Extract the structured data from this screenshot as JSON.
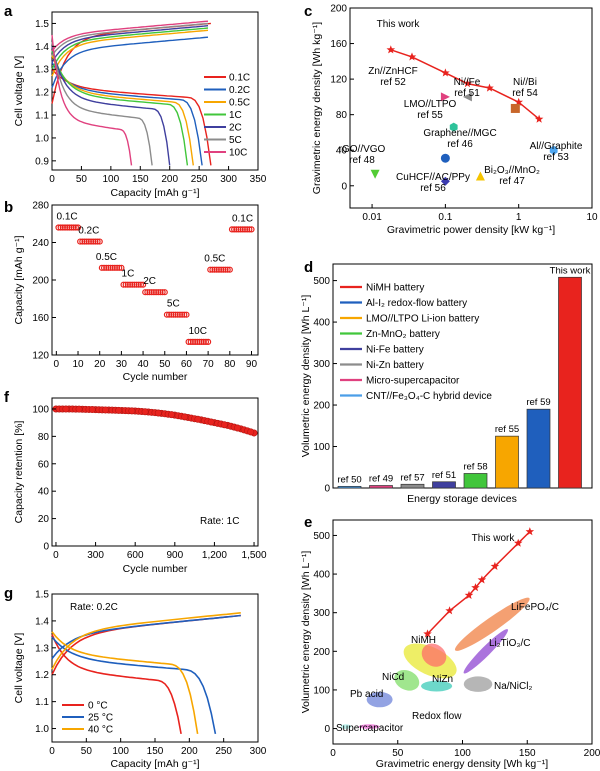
{
  "colors": {
    "red": "#e8231e",
    "blue": "#1f5fbd",
    "orange": "#f7a600",
    "green": "#41c63b",
    "navy": "#3f3f9e",
    "gray": "#8c8c8c",
    "magenta": "#e0417f",
    "lightblue": "#4b9ee8",
    "darkred": "#c0392b",
    "brown": "#c8662a",
    "teal": "#2ec29a",
    "cyan": "#4ea6f0",
    "yellow": "#f5c400",
    "purple": "#3b3bb0",
    "lime": "#52cc35"
  },
  "panels": {
    "a": {
      "letter": "a",
      "xlabel": "Capacity [mAh g⁻¹]",
      "ylabel": "Cell voltage [V]",
      "xticks": [
        "0",
        "50",
        "100",
        "150",
        "200",
        "250",
        "300",
        "350"
      ],
      "yticks": [
        "0.9",
        "1.0",
        "1.1",
        "1.2",
        "1.3",
        "1.4",
        "1.5"
      ],
      "legend": [
        "0.1C",
        "0.2C",
        "0.5C",
        "1C",
        "2C",
        "5C",
        "10C"
      ]
    },
    "b": {
      "letter": "b",
      "xlabel": "Cycle number",
      "ylabel": "Capacity [mAh g⁻¹]",
      "xticks": [
        "0",
        "10",
        "20",
        "30",
        "40",
        "50",
        "60",
        "70",
        "80",
        "90"
      ],
      "yticks": [
        "120",
        "160",
        "200",
        "240",
        "280"
      ],
      "rate_labels": [
        "0.1C",
        "0.2C",
        "0.5C",
        "1C",
        "2C",
        "5C",
        "10C",
        "0.5C",
        "0.1C"
      ]
    },
    "c": {
      "letter": "c",
      "xlabel": "Gravimetric power density [kW kg⁻¹]",
      "ylabel": "Gravimetric energy density [Wh kg⁻¹]",
      "xticks": [
        "0.01",
        "0.1",
        "1",
        "10"
      ],
      "yticks": [
        "0",
        "40",
        "80",
        "120",
        "160",
        "200"
      ],
      "labels": {
        "this_work": "This work",
        "zn": [
          "Zn//ZnHCF",
          "ref 52"
        ],
        "nife": [
          "Ni//Fe",
          "ref 51"
        ],
        "nibi": [
          "Ni//Bi",
          "ref 54"
        ],
        "lmo": [
          "LMO//LTPO",
          "ref 55"
        ],
        "graphene": [
          "Graphene//MGC",
          "ref 46"
        ],
        "rgo": [
          "rGO//VGO",
          "ref 48"
        ],
        "algraphite": [
          "Al//Graphite",
          "ref 53"
        ],
        "bi2o3": [
          "Bi₂O₃//MnO₂",
          "ref 47"
        ],
        "cuhcf": [
          "CuHCF//AC/PPy",
          "ref 56"
        ]
      }
    },
    "d": {
      "letter": "d",
      "xlabel": "Energy storage devices",
      "ylabel": "Volumetric energy density [Wh L⁻¹]",
      "yticks": [
        "0",
        "100",
        "200",
        "300",
        "400",
        "500"
      ],
      "legend": [
        "NiMH battery",
        "Al-I₂ redox-flow battery",
        "LMO//LTPO Li-ion battery",
        "Zn-MnO₂ battery",
        "Ni-Fe battery",
        "Ni-Zn battery",
        "Micro-supercapacitor",
        "CNT//Fe₃O₄-C hybrid device"
      ],
      "bar_labels": [
        "ref 50",
        "ref 49",
        "ref 57",
        "ref 51",
        "ref 58",
        "ref 55",
        "ref 59",
        "This work"
      ]
    },
    "e": {
      "letter": "e",
      "xlabel": "Gravimetric energy density [Wh kg⁻¹]",
      "ylabel": "Volumetric energy density [Wh L⁻¹]",
      "xticks": [
        "0",
        "50",
        "100",
        "150",
        "200"
      ],
      "yticks": [
        "0",
        "100",
        "200",
        "300",
        "400",
        "500"
      ],
      "labels": {
        "this_work": "This work",
        "lifepo4": "LiFePO₄/C",
        "nimh": "NiMH",
        "li2tio3": "Li₂TiO₃/C",
        "nicd": "NiCd",
        "nizn": "NiZn",
        "nanicl2": "Na/NiCl₂",
        "pbacid": "Pb acid",
        "redox": "Redox flow",
        "supercap": "Supercapacitor"
      }
    },
    "f": {
      "letter": "f",
      "xlabel": "Cycle number",
      "ylabel": "Capacity retention [%]",
      "xticks": [
        "0",
        "300",
        "600",
        "900",
        "1,200",
        "1,500"
      ],
      "yticks": [
        "0",
        "20",
        "40",
        "60",
        "80",
        "100"
      ],
      "rate": "Rate: 1C"
    },
    "g": {
      "letter": "g",
      "xlabel": "Capacity [mAh g⁻¹]",
      "ylabel": "Cell voltage [V]",
      "xticks": [
        "0",
        "50",
        "100",
        "150",
        "200",
        "250",
        "300"
      ],
      "yticks": [
        "1.0",
        "1.1",
        "1.2",
        "1.3",
        "1.4",
        "1.5"
      ],
      "rate": "Rate: 0.2C",
      "legend": [
        "0 °C",
        "25 °C",
        "40 °C"
      ]
    }
  },
  "chart_data": [
    {
      "panel": "a",
      "type": "line",
      "xlim": [
        0,
        350
      ],
      "ylim": [
        0.86,
        1.55
      ],
      "series": [
        {
          "name": "0.1C",
          "color": "#e8231e",
          "discharge_end": 270,
          "charge_end": 270,
          "d_start": 1.3,
          "d_plateau": 1.22,
          "c_start": 1.15,
          "c_plateau": 1.5
        },
        {
          "name": "0.2C",
          "color": "#1f5fbd",
          "discharge_end": 255,
          "charge_end": 265,
          "d_start": 1.33,
          "d_plateau": 1.21,
          "c_start": 1.22,
          "c_plateau": 1.44
        },
        {
          "name": "0.5C",
          "color": "#f7a600",
          "discharge_end": 240,
          "charge_end": 265,
          "d_start": 1.36,
          "d_plateau": 1.2,
          "c_start": 1.27,
          "c_plateau": 1.47
        },
        {
          "name": "1C",
          "color": "#41c63b",
          "discharge_end": 230,
          "charge_end": 265,
          "d_start": 1.38,
          "d_plateau": 1.19,
          "c_start": 1.3,
          "c_plateau": 1.48
        },
        {
          "name": "2C",
          "color": "#3f3f9e",
          "discharge_end": 200,
          "charge_end": 265,
          "d_start": 1.4,
          "d_plateau": 1.17,
          "c_start": 1.33,
          "c_plateau": 1.49
        },
        {
          "name": "5C",
          "color": "#8c8c8c",
          "discharge_end": 170,
          "charge_end": 265,
          "d_start": 1.42,
          "d_plateau": 1.13,
          "c_start": 1.36,
          "c_plateau": 1.5
        },
        {
          "name": "10C",
          "color": "#e0417f",
          "discharge_end": 135,
          "charge_end": 265,
          "d_start": 1.45,
          "d_plateau": 1.08,
          "c_start": 1.38,
          "c_plateau": 1.51
        }
      ]
    },
    {
      "panel": "b",
      "type": "scatter",
      "xlim": [
        -2,
        93
      ],
      "ylim": [
        120,
        280
      ],
      "segments": [
        {
          "label": "0.1C",
          "from": 1,
          "to": 10,
          "value": 256
        },
        {
          "label": "0.2C",
          "from": 11,
          "to": 20,
          "value": 241
        },
        {
          "label": "0.5C",
          "from": 21,
          "to": 30,
          "value": 213
        },
        {
          "label": "1C",
          "from": 31,
          "to": 40,
          "value": 195
        },
        {
          "label": "2C",
          "from": 41,
          "to": 50,
          "value": 187
        },
        {
          "label": "5C",
          "from": 51,
          "to": 60,
          "value": 163
        },
        {
          "label": "10C",
          "from": 61,
          "to": 70,
          "value": 134
        },
        {
          "label": "0.5C",
          "from": 71,
          "to": 80,
          "value": 211
        },
        {
          "label": "0.1C",
          "from": 81,
          "to": 90,
          "value": 254
        }
      ]
    },
    {
      "panel": "c",
      "type": "scatter",
      "xscale": "log",
      "xlim": [
        0.005,
        10
      ],
      "ylim": [
        -25,
        200
      ],
      "this_work": [
        [
          0.018,
          153
        ],
        [
          0.035,
          145
        ],
        [
          0.1,
          127
        ],
        [
          0.2,
          115
        ],
        [
          0.4,
          110
        ],
        [
          1.0,
          94
        ],
        [
          1.9,
          75
        ]
      ],
      "points": [
        {
          "key": "zn",
          "x": 0.1,
          "y": 100,
          "shape": "tri-right",
          "color": "#e0417f"
        },
        {
          "key": "nife",
          "x": 0.2,
          "y": 100,
          "shape": "tri-left",
          "color": "#8c8c8c"
        },
        {
          "key": "nibi",
          "x": 0.9,
          "y": 87,
          "shape": "square",
          "color": "#c8662a"
        },
        {
          "key": "lmo",
          "x": 0.13,
          "y": 66,
          "shape": "hexagon",
          "color": "#2ec29a"
        },
        {
          "key": "graphene",
          "x": 0.1,
          "y": 31,
          "shape": "circle",
          "color": "#1f5fbd"
        },
        {
          "key": "rgo",
          "x": 0.011,
          "y": 13,
          "shape": "tri-down",
          "color": "#52cc35"
        },
        {
          "key": "algraphite",
          "x": 3.0,
          "y": 40,
          "shape": "hexagon",
          "color": "#4ea6f0"
        },
        {
          "key": "bi2o3",
          "x": 0.3,
          "y": 11,
          "shape": "tri-up",
          "color": "#f5c400"
        },
        {
          "key": "cuhcf",
          "x": 0.1,
          "y": 5,
          "shape": "diamond",
          "color": "#3b3bb0"
        }
      ]
    },
    {
      "panel": "d",
      "type": "bar",
      "ylim": [
        0,
        540
      ],
      "categories": [
        "ref 50",
        "ref 49",
        "ref 57",
        "ref 51",
        "ref 58",
        "ref 55",
        "ref 59",
        "This work"
      ],
      "values": [
        4,
        6,
        9,
        15,
        35,
        125,
        190,
        508
      ],
      "colors": [
        "#4b9ee8",
        "#e0417f",
        "#8c8c8c",
        "#3f3f9e",
        "#41c63b",
        "#f7a600",
        "#1f5fbd",
        "#e8231e"
      ]
    },
    {
      "panel": "e",
      "type": "scatter",
      "xlim": [
        0,
        200
      ],
      "ylim": [
        -40,
        540
      ],
      "this_work": [
        [
          73,
          245
        ],
        [
          90,
          305
        ],
        [
          105,
          345
        ],
        [
          110,
          365
        ],
        [
          115,
          385
        ],
        [
          125,
          420
        ],
        [
          143,
          480
        ],
        [
          152,
          510
        ]
      ],
      "regions": [
        {
          "key": "lifepo4",
          "cx": 123,
          "cy": 270,
          "rx": 35,
          "ry": 18,
          "angle": -35,
          "color": "#f07c3c"
        },
        {
          "key": "li2tio3",
          "cx": 118,
          "cy": 200,
          "rx": 24,
          "ry": 12,
          "angle": -45,
          "color": "#8a3fd0"
        },
        {
          "key": "nimh",
          "cx": 75,
          "cy": 175,
          "rx": 22,
          "ry": 36,
          "angle": 25,
          "color": "#e7e72b"
        },
        {
          "key": "nimh2",
          "cx": 78,
          "cy": 190,
          "rx": 10,
          "ry": 28,
          "angle": 35,
          "color": "#ff6a6a"
        },
        {
          "key": "nicd",
          "cx": 57,
          "cy": 125,
          "rx": 10,
          "ry": 25,
          "angle": 25,
          "color": "#7bdd62"
        },
        {
          "key": "nizn",
          "cx": 80,
          "cy": 110,
          "rx": 12,
          "ry": 14,
          "angle": 0,
          "color": "#35c9b5"
        },
        {
          "key": "nanicl2",
          "cx": 112,
          "cy": 115,
          "rx": 11,
          "ry": 20,
          "angle": 0,
          "color": "#9a9a9a"
        },
        {
          "key": "pbacid",
          "cx": 36,
          "cy": 75,
          "rx": 10,
          "ry": 20,
          "angle": 0,
          "color": "#6a7fd8"
        },
        {
          "key": "redox",
          "cx": 28,
          "cy": 5,
          "rx": 8,
          "ry": 6,
          "angle": 0,
          "color": "#f068d8"
        },
        {
          "key": "supercap",
          "cx": 10,
          "cy": 5,
          "rx": 4,
          "ry": 6,
          "angle": 0,
          "color": "#a8efe8"
        }
      ]
    },
    {
      "panel": "f",
      "type": "scatter",
      "xlim": [
        -30,
        1530
      ],
      "ylim": [
        0,
        108
      ],
      "points": [
        [
          0,
          100
        ],
        [
          100,
          100
        ],
        [
          200,
          99.8
        ],
        [
          300,
          99.5
        ],
        [
          400,
          99.2
        ],
        [
          500,
          98.9
        ],
        [
          600,
          98.5
        ],
        [
          700,
          97.8
        ],
        [
          800,
          96.8
        ],
        [
          900,
          95.5
        ],
        [
          1000,
          93.8
        ],
        [
          1100,
          92
        ],
        [
          1200,
          90
        ],
        [
          1300,
          88
        ],
        [
          1400,
          85.5
        ],
        [
          1500,
          82.5
        ]
      ]
    },
    {
      "panel": "g",
      "type": "line",
      "xlim": [
        0,
        300
      ],
      "ylim": [
        0.95,
        1.5
      ],
      "series": [
        {
          "name": "0 °C",
          "color": "#e8231e",
          "discharge_end": 188,
          "charge_end": 275
        },
        {
          "name": "25 °C",
          "color": "#1f5fbd",
          "discharge_end": 238,
          "charge_end": 275
        },
        {
          "name": "40 °C",
          "color": "#f7a600",
          "discharge_end": 212,
          "charge_end": 275
        }
      ]
    }
  ]
}
